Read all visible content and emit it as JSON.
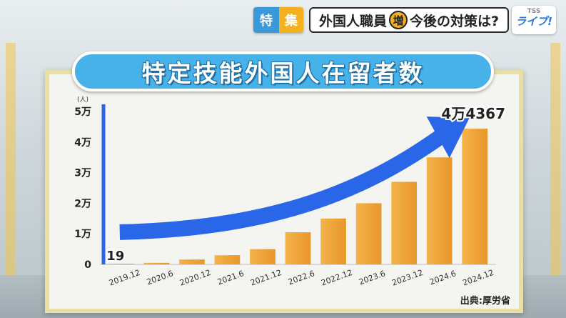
{
  "ticker": {
    "badge_left": "特",
    "badge_right": "集",
    "title_before": "外国人職員",
    "title_tag": "増",
    "title_after": "今後の対策は?"
  },
  "logo": {
    "line1": "TSS",
    "line2": "ライブ!"
  },
  "chart_data": {
    "type": "bar",
    "title": "特定技能外国人在留者数",
    "ylabel_unit": "(人)",
    "categories": [
      "2019.12",
      "2020.6",
      "2020.12",
      "2021.6",
      "2021.12",
      "2022.6",
      "2022.12",
      "2023.6",
      "2023.12",
      "2024.6",
      "2024.12"
    ],
    "values": [
      19,
      500,
      1600,
      3000,
      5000,
      10500,
      15000,
      20000,
      27000,
      35000,
      44367
    ],
    "yticks": [
      {
        "value": 0,
        "label": "0"
      },
      {
        "value": 10000,
        "label": "1万"
      },
      {
        "value": 20000,
        "label": "2万"
      },
      {
        "value": 30000,
        "label": "3万"
      },
      {
        "value": 40000,
        "label": "4万"
      },
      {
        "value": 50000,
        "label": "5万"
      }
    ],
    "ylim": [
      0,
      50000
    ],
    "data_labels": [
      {
        "index": 0,
        "text": "19"
      },
      {
        "index": 10,
        "text": "4万4367"
      }
    ],
    "bar_color": "#f0a030",
    "arrow_color": "#2a66e8",
    "grid": false,
    "source": "出典:厚労省"
  }
}
